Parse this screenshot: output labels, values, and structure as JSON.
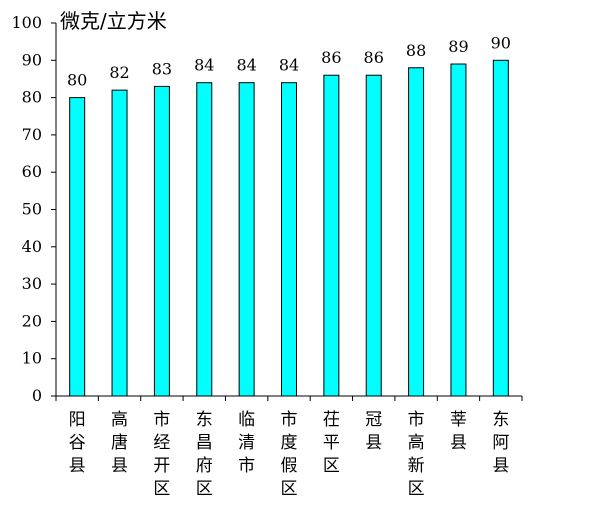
{
  "chart_data": {
    "type": "bar",
    "title": "",
    "unit_label": "微克/立方米",
    "xlabel": "",
    "ylabel": "",
    "ylim": [
      0,
      100
    ],
    "yticks": [
      0,
      10,
      20,
      30,
      40,
      50,
      60,
      70,
      80,
      90,
      100
    ],
    "grid": false,
    "categories": [
      "阳谷县",
      "高唐县",
      "市经开区",
      "东昌府区",
      "临清市",
      "市度假区",
      "茌平区",
      "冠县",
      "市高新区",
      "莘县",
      "东阿县"
    ],
    "values": [
      80,
      82,
      83,
      84,
      84,
      84,
      86,
      86,
      88,
      89,
      90
    ],
    "bar_color": "#00FFFF",
    "bar_edge_color": "#000000"
  }
}
